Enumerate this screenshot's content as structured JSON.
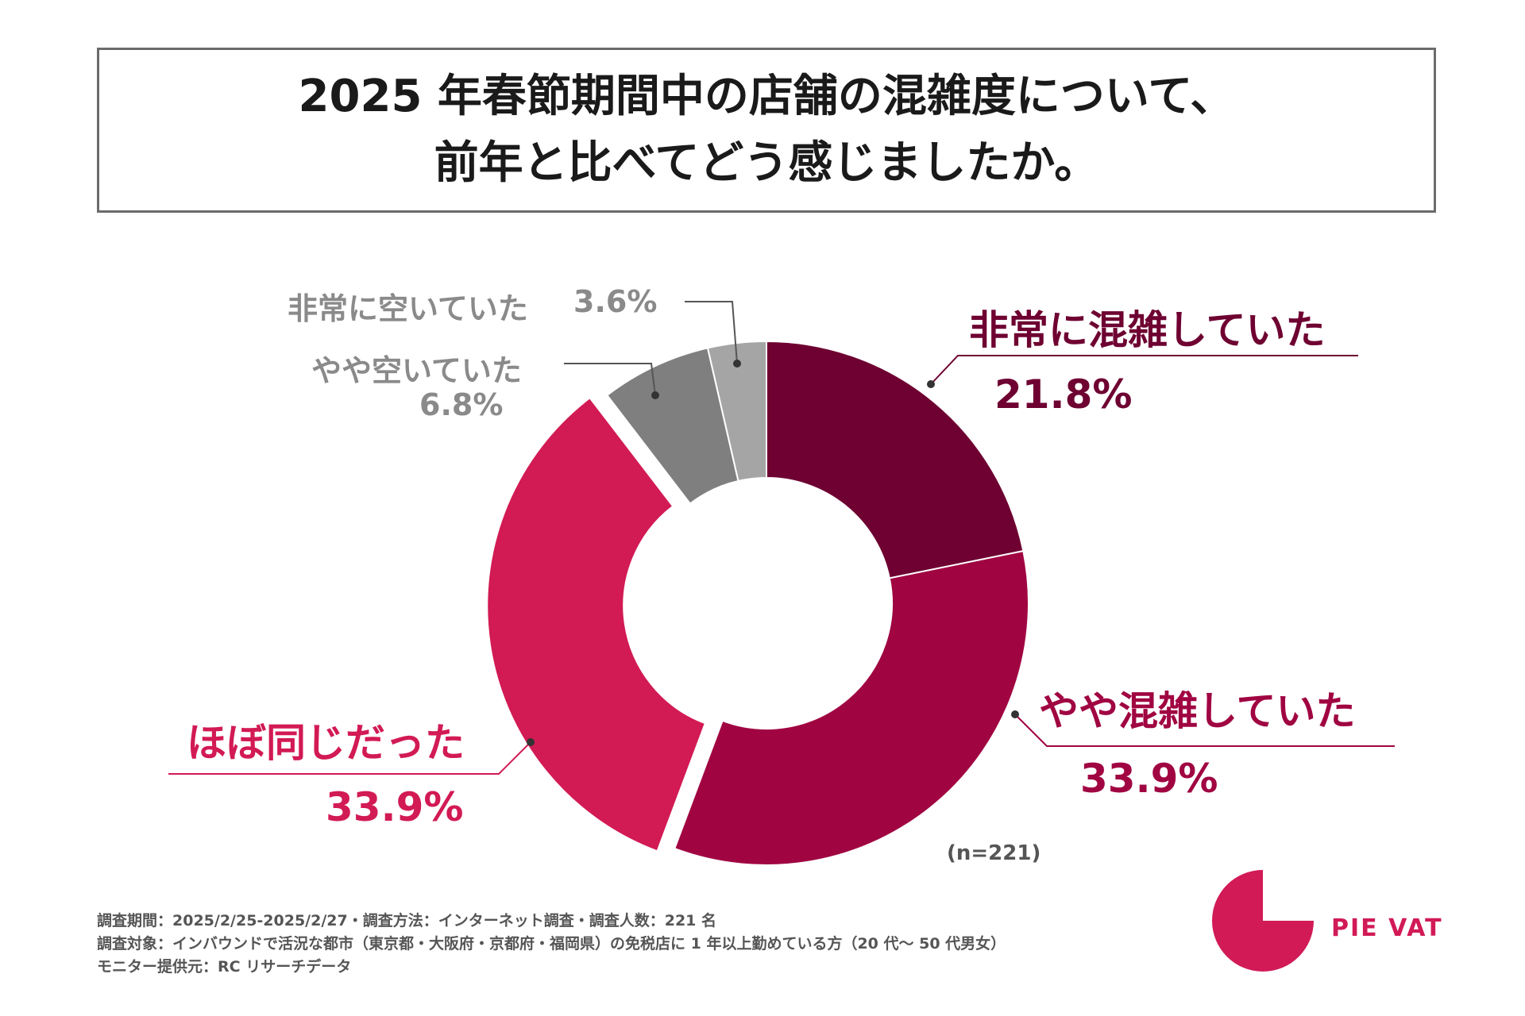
{
  "title": {
    "line1": "2025 年春節期間中の店舗の混雑度について、",
    "line2": "前年と比べてどう感じましたか。"
  },
  "chart_data": {
    "type": "pie",
    "donut": true,
    "sample": "(n=221)",
    "categories": [
      "非常に混雑していた",
      "やや混雑していた",
      "ほぼ同じだった",
      "やや空いていた",
      "非常に空いていた"
    ],
    "values": [
      21.8,
      33.9,
      33.9,
      6.8,
      3.6
    ],
    "labels": [
      "21.8%",
      "33.9%",
      "33.9%",
      "6.8%",
      "3.6%"
    ],
    "colors": [
      "#6e0131",
      "#a00542",
      "#d21a54",
      "#7f7f7f",
      "#a5a5a5"
    ]
  },
  "footer": {
    "line1": "調査期間：2025/2/25-2025/2/27・調査方法：インターネット調査・調査人数：221 名",
    "line2": "調査対象：インバウンドで活況な都市（東京都・大阪府・京都府・福岡県）の免税店に 1 年以上勤めている方（20 代～ 50 代男女）",
    "line3": "モニター提供元：RC リサーチデータ"
  },
  "brand": {
    "name": "PIE VAT",
    "color": "#d11a56",
    "icon": "pie-logo-icon"
  }
}
